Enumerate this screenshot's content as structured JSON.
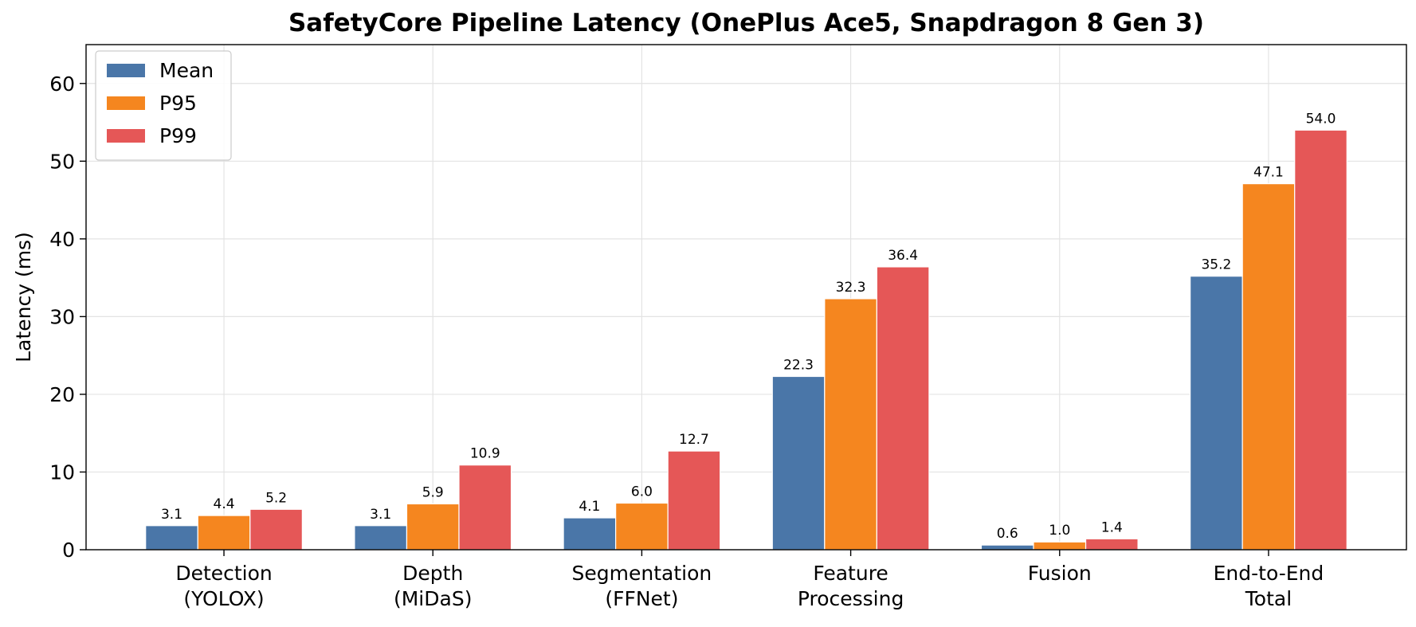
{
  "chart_data": {
    "type": "bar",
    "title": "SafetyCore Pipeline Latency (OnePlus Ace5, Snapdragon 8 Gen 3)",
    "xlabel": "",
    "ylabel": "Latency (ms)",
    "ylim": [
      0,
      65
    ],
    "yticks": [
      0,
      10,
      20,
      30,
      40,
      50,
      60
    ],
    "grid": true,
    "legend_position": "top-left",
    "categories": [
      [
        "Detection",
        "(YOLOX)"
      ],
      [
        "Depth",
        "(MiDaS)"
      ],
      [
        "Segmentation",
        "(FFNet)"
      ],
      [
        "Feature",
        "Processing"
      ],
      [
        "Fusion"
      ],
      [
        "End-to-End",
        "Total"
      ]
    ],
    "series": [
      {
        "name": "Mean",
        "color": "#4a76a8",
        "values": [
          3.1,
          3.1,
          4.1,
          22.3,
          0.6,
          35.2
        ]
      },
      {
        "name": "P95",
        "color": "#f5861f",
        "values": [
          4.4,
          5.9,
          6.0,
          32.3,
          1.0,
          47.1
        ]
      },
      {
        "name": "P99",
        "color": "#e55757",
        "values": [
          5.2,
          10.9,
          12.7,
          36.4,
          1.4,
          54.0
        ]
      }
    ]
  }
}
